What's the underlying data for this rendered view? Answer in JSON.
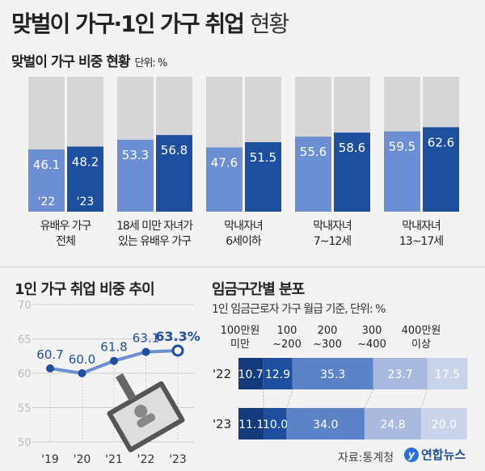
{
  "title": {
    "bold": "맞벌이 가구·1인 가구 취업",
    "regular": "현황"
  },
  "colors": {
    "light_blue": "#6b8fd2",
    "dark_blue": "#1e4f9e",
    "grey": "#d6d6d6",
    "navy": "#123a7c"
  },
  "chart_data": [
    {
      "type": "bar",
      "title": "맞벌이 가구 비중 현황",
      "unit": "단위: %",
      "ylim": [
        0,
        100
      ],
      "categories": [
        "유배우 가구\n전체",
        "18세 미만 자녀가\n있는 유배우 가구",
        "막내자녀\n6세이하",
        "막내자녀\n7~12세",
        "막내자녀\n13~17세"
      ],
      "series": [
        {
          "name": "'22",
          "values": [
            46.1,
            53.3,
            47.6,
            55.6,
            59.5
          ]
        },
        {
          "name": "'23",
          "values": [
            48.2,
            56.8,
            51.5,
            58.6,
            62.6
          ]
        }
      ]
    },
    {
      "type": "line",
      "title": "1인 가구 취업 비중 추이",
      "x": [
        "'19",
        "'20",
        "'21",
        "'22",
        "'23"
      ],
      "values": [
        60.7,
        60.0,
        61.8,
        63.1,
        63.3
      ],
      "labels": [
        "60.7",
        "60.0",
        "61.8",
        "63.1",
        "63.3%"
      ],
      "ylim": [
        50,
        70
      ],
      "yticks": [
        "50",
        "55",
        "60",
        "65",
        "70"
      ],
      "grid": true
    },
    {
      "type": "bar",
      "stacked": true,
      "orientation": "horizontal",
      "title": "임금구간별 분포",
      "subtitle": "1인 임금근로자 가구 월급 기준, 단위: %",
      "categories": [
        "'22",
        "'23"
      ],
      "segments": [
        "100만원\n미만",
        "100\n~200",
        "200\n~300",
        "300\n~400",
        "400만원\n이상"
      ],
      "segment_colors": [
        "#123a7c",
        "#1e4f9e",
        "#5c82c8",
        "#a9bade",
        "#c9d4ea"
      ],
      "values": [
        [
          10.7,
          12.9,
          35.3,
          23.7,
          17.5
        ],
        [
          11.1,
          10.0,
          34.0,
          24.8,
          20.0
        ]
      ]
    }
  ],
  "source": "자료:통계청",
  "logo": "연합뉴스"
}
